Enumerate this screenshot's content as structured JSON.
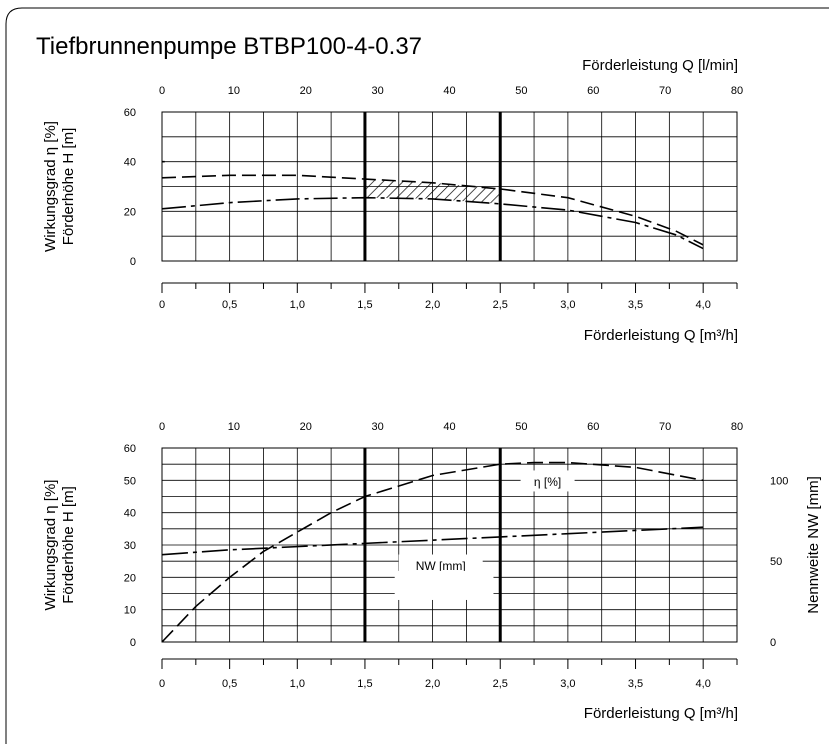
{
  "title": "Tiefbrunnenpumpe BTBP100-4-0.37",
  "chart_data": [
    {
      "type": "line",
      "top_xlabel": "Förderleistung Q [l/min]",
      "top_ticks": [
        "0",
        "10",
        "20",
        "30",
        "40",
        "50",
        "60",
        "70",
        "80"
      ],
      "top_xlim": [
        0,
        80
      ],
      "xlabel": "Förderleistung Q [m³/h]",
      "x_ticks": [
        "0",
        "0,5",
        "1,0",
        "1,5",
        "2,0",
        "2,5",
        "3,0",
        "3,5",
        "4,0"
      ],
      "xlim": [
        0,
        4.25
      ],
      "ylabel_1": "Wirkungsgrad η [%]",
      "ylabel_2": "Förderhöhe H [m]",
      "y_ticks": [
        "0",
        "20",
        "40",
        "60"
      ],
      "ylim": [
        0,
        60
      ],
      "grid": true,
      "operating_range": [
        1.5,
        2.5
      ],
      "series": [
        {
          "x": [
            0,
            0.5,
            1.0,
            1.5,
            2.0,
            2.5,
            3.0,
            3.5,
            3.8,
            4.0
          ],
          "y": [
            33.5,
            34.5,
            34.5,
            33,
            31.5,
            29,
            25.5,
            18,
            12,
            6.5
          ]
        },
        {
          "x": [
            0,
            0.5,
            1.0,
            1.5,
            2.0,
            2.5,
            3.0,
            3.5,
            3.8,
            4.0
          ],
          "y": [
            21,
            23.5,
            25,
            25.5,
            25,
            23,
            20.5,
            15.5,
            10.5,
            5
          ]
        },
        {
          "x": [
            0,
            0.02
          ],
          "y": [
            40,
            40
          ]
        }
      ]
    },
    {
      "type": "line",
      "top_xlabel": "",
      "top_ticks": [
        "0",
        "10",
        "20",
        "30",
        "40",
        "50",
        "60",
        "70",
        "80"
      ],
      "top_xlim": [
        0,
        80
      ],
      "xlabel": "Förderleistung Q [m³/h]",
      "x_ticks": [
        "0",
        "0,5",
        "1,0",
        "1,5",
        "2,0",
        "2,5",
        "3,0",
        "3,5",
        "4,0"
      ],
      "xlim": [
        0,
        4.25
      ],
      "ylabel_1": "Wirkungsgrad η [%]",
      "ylabel_2": "Förderhöhe H [m]",
      "y_ticks": [
        "0",
        "10",
        "20",
        "30",
        "40",
        "50",
        "60"
      ],
      "ylim": [
        0,
        60
      ],
      "y2label": "Nennweite NW [mm]",
      "y2_ticks": [
        "0",
        "50",
        "100"
      ],
      "y2lim": [
        0,
        120
      ],
      "grid": true,
      "operating_range": [
        1.5,
        2.5
      ],
      "series": [
        {
          "name": "η [%]",
          "x": [
            0,
            0.25,
            0.5,
            0.75,
            1.0,
            1.25,
            1.5,
            2.0,
            2.5,
            2.75,
            3.0,
            3.5,
            4.0
          ],
          "y": [
            0,
            11,
            20,
            28,
            34,
            40,
            45,
            51.5,
            55,
            55.5,
            55.5,
            54,
            50
          ]
        },
        {
          "name": "NW [mm]",
          "x": [
            0,
            0.5,
            1.0,
            1.5,
            2.0,
            2.5,
            3.0,
            3.5,
            4.0
          ],
          "y": [
            27,
            28.5,
            29.5,
            30.5,
            31.5,
            32.5,
            33.5,
            34.5,
            35.5
          ]
        }
      ]
    }
  ]
}
